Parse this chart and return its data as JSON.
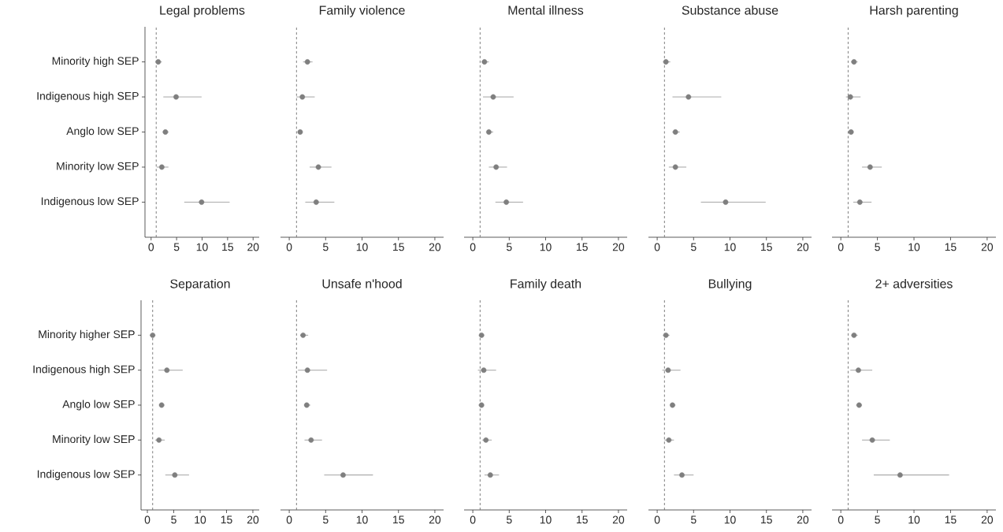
{
  "chart_data": [
    {
      "type": "scatter",
      "orientation": "horizontal",
      "title": "Legal problems",
      "categories": [
        "Minority high SEP",
        "Indigenous high SEP",
        "Anglo low SEP",
        "Minority low SEP",
        "Indigenous low SEP"
      ],
      "values": [
        1.4,
        4.9,
        2.8,
        2.1,
        9.9
      ],
      "errors": [
        [
          0.9,
          2.1
        ],
        [
          2.4,
          9.9
        ],
        [
          2.3,
          3.4
        ],
        [
          1.1,
          3.4
        ],
        [
          6.5,
          15.4
        ]
      ],
      "color": "#7f7f7f",
      "xlim": [
        -1.2,
        21.2
      ],
      "xticks": [
        0,
        5,
        10,
        15,
        20
      ],
      "ref_lines": [
        {
          "axis": "x",
          "value": 1,
          "color": "#6e6e6e",
          "line_style": "dashed"
        }
      ]
    },
    {
      "type": "scatter",
      "orientation": "horizontal",
      "title": "Family violence",
      "categories": [
        null,
        null,
        null,
        null,
        null
      ],
      "values": [
        2.5,
        1.8,
        1.5,
        4.0,
        3.7
      ],
      "errors": [
        [
          1.9,
          3.2
        ],
        [
          1.0,
          3.5
        ],
        [
          1.2,
          1.8
        ],
        [
          2.8,
          5.8
        ],
        [
          2.2,
          6.2
        ]
      ],
      "color": "#7f7f7f",
      "xlim": [
        -1.2,
        21.2
      ],
      "xticks": [
        0,
        5,
        10,
        15,
        20
      ],
      "tick_labels": "x",
      "ref_lines": [
        {
          "axis": "x",
          "value": 1,
          "color": "#6e6e6e",
          "line_style": "dashed"
        }
      ]
    },
    {
      "type": "scatter",
      "orientation": "horizontal",
      "title": "Mental illness",
      "categories": [
        null,
        null,
        null,
        null,
        null
      ],
      "values": [
        1.6,
        2.8,
        2.2,
        3.2,
        4.6
      ],
      "errors": [
        [
          1.2,
          2.2
        ],
        [
          1.4,
          5.6
        ],
        [
          1.9,
          2.8
        ],
        [
          2.2,
          4.7
        ],
        [
          3.1,
          6.9
        ]
      ],
      "color": "#7f7f7f",
      "xlim": [
        -1.2,
        21.2
      ],
      "xticks": [
        0,
        5,
        10,
        15,
        20
      ],
      "tick_labels": "x",
      "ref_lines": [
        {
          "axis": "x",
          "value": 1,
          "color": "#6e6e6e",
          "line_style": "dashed"
        }
      ]
    },
    {
      "type": "scatter",
      "orientation": "horizontal",
      "title": "Substance abuse",
      "categories": [
        null,
        null,
        null,
        null,
        null
      ],
      "values": [
        1.2,
        4.3,
        2.5,
        2.5,
        9.4
      ],
      "errors": [
        [
          0.8,
          1.8
        ],
        [
          2.1,
          8.8
        ],
        [
          2.1,
          3.1
        ],
        [
          1.6,
          4.0
        ],
        [
          6.0,
          14.9
        ]
      ],
      "color": "#7f7f7f",
      "xlim": [
        -1.2,
        21.2
      ],
      "xticks": [
        0,
        5,
        10,
        15,
        20
      ],
      "tick_labels": "x",
      "ref_lines": [
        {
          "axis": "x",
          "value": 1,
          "color": "#6e6e6e",
          "line_style": "dashed"
        }
      ]
    },
    {
      "type": "scatter",
      "orientation": "horizontal",
      "title": "Harsh parenting",
      "categories": [
        null,
        null,
        null,
        null,
        null
      ],
      "values": [
        1.8,
        1.3,
        1.4,
        4.0,
        2.6
      ],
      "errors": [
        [
          1.4,
          2.3
        ],
        [
          0.7,
          2.7
        ],
        [
          1.1,
          1.7
        ],
        [
          2.9,
          5.6
        ],
        [
          1.7,
          4.2
        ]
      ],
      "color": "#7f7f7f",
      "xlim": [
        -1.2,
        21.2
      ],
      "xticks": [
        0,
        5,
        10,
        15,
        20
      ],
      "tick_labels": "x",
      "ref_lines": [
        {
          "axis": "x",
          "value": 1,
          "color": "#6e6e6e",
          "line_style": "dashed"
        }
      ]
    },
    {
      "type": "scatter",
      "orientation": "horizontal",
      "title": "Separation",
      "categories": [
        "Minority higher SEP",
        "Indigenous high SEP",
        "Anglo low SEP",
        "Minority low SEP",
        "Indigenous low SEP"
      ],
      "values": [
        1.0,
        3.7,
        2.7,
        2.2,
        5.2
      ],
      "errors": [
        [
          0.5,
          1.5
        ],
        [
          2.1,
          6.7
        ],
        [
          2.3,
          3.2
        ],
        [
          1.5,
          3.3
        ],
        [
          3.4,
          7.9
        ]
      ],
      "color": "#7f7f7f",
      "xlim": [
        -1.2,
        21.2
      ],
      "xticks": [
        0,
        5,
        10,
        15,
        20
      ],
      "ref_lines": [
        {
          "axis": "x",
          "value": 1,
          "color": "#6e6e6e",
          "line_style": "dashed"
        }
      ]
    },
    {
      "type": "scatter",
      "orientation": "horizontal",
      "title": "Unsafe n'hood",
      "categories": [
        null,
        null,
        null,
        null,
        null
      ],
      "values": [
        1.9,
        2.5,
        2.4,
        3.0,
        7.4
      ],
      "errors": [
        [
          1.5,
          2.6
        ],
        [
          1.2,
          5.2
        ],
        [
          2.1,
          2.9
        ],
        [
          2.1,
          4.5
        ],
        [
          4.8,
          11.5
        ]
      ],
      "color": "#7f7f7f",
      "xlim": [
        -1.2,
        21.2
      ],
      "xticks": [
        0,
        5,
        10,
        15,
        20
      ],
      "tick_labels": "x",
      "ref_lines": [
        {
          "axis": "x",
          "value": 1,
          "color": "#6e6e6e",
          "line_style": "dashed"
        }
      ]
    },
    {
      "type": "scatter",
      "orientation": "horizontal",
      "title": "Family death",
      "categories": [
        null,
        null,
        null,
        null,
        null
      ],
      "values": [
        1.2,
        1.5,
        1.2,
        1.8,
        2.4
      ],
      "errors": [
        [
          0.9,
          1.5
        ],
        [
          0.7,
          3.2
        ],
        [
          0.8,
          1.5
        ],
        [
          1.3,
          2.6
        ],
        [
          1.6,
          3.6
        ]
      ],
      "color": "#7f7f7f",
      "xlim": [
        -1.2,
        21.2
      ],
      "xticks": [
        0,
        5,
        10,
        15,
        20
      ],
      "tick_labels": "x",
      "ref_lines": [
        {
          "axis": "x",
          "value": 1,
          "color": "#6e6e6e",
          "line_style": "dashed"
        }
      ]
    },
    {
      "type": "scatter",
      "orientation": "horizontal",
      "title": "Bullying",
      "categories": [
        null,
        null,
        null,
        null,
        null
      ],
      "values": [
        1.2,
        1.5,
        2.1,
        1.6,
        3.4
      ],
      "errors": [
        [
          0.8,
          1.7
        ],
        [
          0.7,
          3.2
        ],
        [
          1.8,
          2.5
        ],
        [
          1.0,
          2.3
        ],
        [
          2.3,
          5.0
        ]
      ],
      "color": "#7f7f7f",
      "xlim": [
        -1.2,
        21.2
      ],
      "xticks": [
        0,
        5,
        10,
        15,
        20
      ],
      "tick_labels": "x",
      "ref_lines": [
        {
          "axis": "x",
          "value": 1,
          "color": "#6e6e6e",
          "line_style": "dashed"
        }
      ]
    },
    {
      "type": "scatter",
      "orientation": "horizontal",
      "title": "2+ adversities",
      "categories": [
        null,
        null,
        null,
        null,
        null
      ],
      "values": [
        1.8,
        2.4,
        2.5,
        4.3,
        8.1
      ],
      "errors": [
        [
          1.5,
          2.3
        ],
        [
          1.3,
          4.3
        ],
        [
          2.1,
          2.9
        ],
        [
          2.9,
          6.7
        ],
        [
          4.5,
          14.8
        ]
      ],
      "color": "#7f7f7f",
      "xlim": [
        -1.2,
        21.2
      ],
      "xticks": [
        0,
        5,
        10,
        15,
        20
      ],
      "tick_labels": "x",
      "ref_lines": [
        {
          "axis": "x",
          "value": 1,
          "color": "#6e6e6e",
          "line_style": "dashed"
        }
      ]
    }
  ]
}
